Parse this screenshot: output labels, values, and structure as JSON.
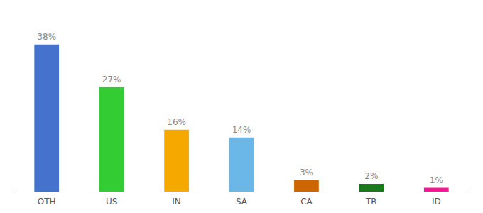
{
  "chart_data": {
    "type": "bar",
    "categories": [
      "OTH",
      "US",
      "IN",
      "SA",
      "CA",
      "TR",
      "ID"
    ],
    "values": [
      38,
      27,
      16,
      14,
      3,
      2,
      1
    ],
    "value_labels": [
      "38%",
      "27%",
      "16%",
      "14%",
      "3%",
      "2%",
      "1%"
    ],
    "colors": [
      "#4472cc",
      "#33cc33",
      "#f5a800",
      "#6bb8e8",
      "#cc6600",
      "#1a7a1a",
      "#ff1493"
    ],
    "ylim": [
      0,
      44
    ],
    "data_labels": true,
    "tick_labels": "x",
    "grid": false
  }
}
